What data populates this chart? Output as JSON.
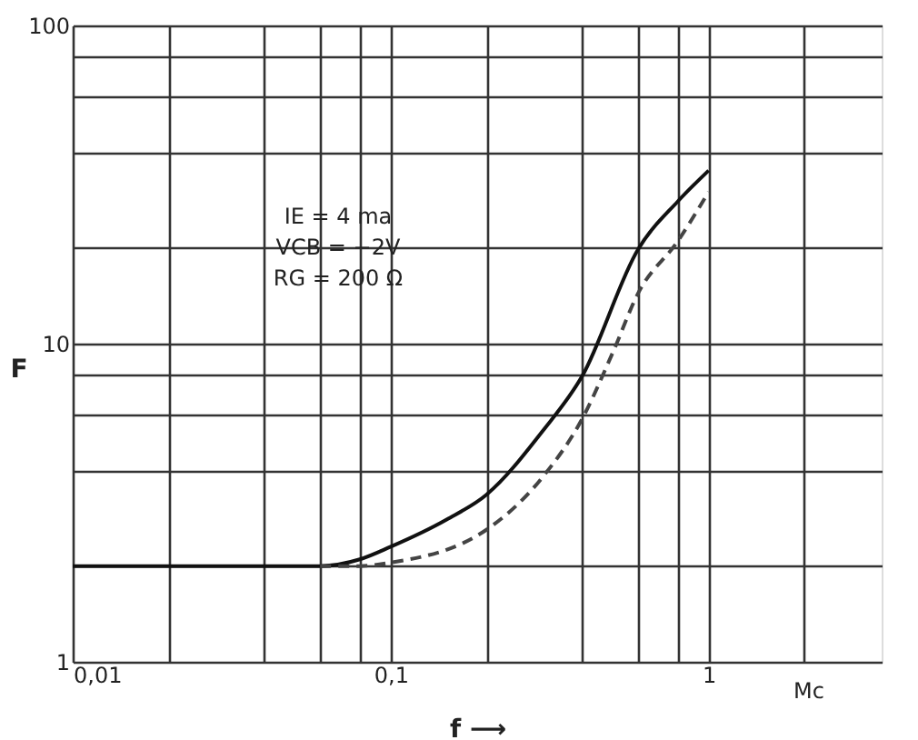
{
  "chart_data": {
    "type": "line",
    "xlabel": "f ⟶",
    "ylabel": "F",
    "log": "xy",
    "grid": true,
    "marker": "none",
    "xlim": [
      0.01,
      3.5
    ],
    "ylim": [
      1,
      100
    ],
    "xticks": [
      {
        "value": 0.01,
        "label": "0,01"
      },
      {
        "value": 0.02,
        "label": null
      },
      {
        "value": 0.04,
        "label": null
      },
      {
        "value": 0.06,
        "label": null
      },
      {
        "value": 0.08,
        "label": null
      },
      {
        "value": 0.1,
        "label": "0,1"
      },
      {
        "value": 0.2,
        "label": null
      },
      {
        "value": 0.4,
        "label": null
      },
      {
        "value": 0.6,
        "label": null
      },
      {
        "value": 0.8,
        "label": null
      },
      1,
      {
        "value": 2,
        "label": null
      }
    ],
    "yticks": [
      1,
      {
        "value": 2,
        "label": null
      },
      {
        "value": 4,
        "label": null
      },
      {
        "value": 6,
        "label": null
      },
      {
        "value": 8,
        "label": null
      },
      10,
      {
        "value": 20,
        "label": null
      },
      {
        "value": 40,
        "label": null
      },
      {
        "value": 60,
        "label": null
      },
      {
        "value": 80,
        "label": null
      },
      100
    ],
    "series": [
      {
        "color": "#111111",
        "line_style": "solid",
        "x": [
          0.01,
          0.02,
          0.04,
          0.06,
          0.08,
          0.1,
          0.15,
          0.2,
          0.3,
          0.4,
          0.6,
          0.8,
          1.0
        ],
        "values": [
          2,
          2,
          2,
          2,
          2.1,
          2.3,
          2.8,
          3.35,
          5.3,
          7.9,
          19.8,
          28,
          35
        ]
      },
      {
        "color": "#444444",
        "line_style": "dashed",
        "x": [
          0.06,
          0.08,
          0.1,
          0.2,
          0.3,
          0.4,
          0.5,
          0.6,
          0.8,
          1.0
        ],
        "values": [
          2,
          2,
          2.05,
          2.6,
          3.8,
          5.8,
          9.4,
          14.4,
          21,
          30
        ]
      }
    ],
    "annotations": [
      "IE = 4 ma",
      "VCB = −2V",
      "RG = 200 Ω",
      "Mc"
    ]
  }
}
